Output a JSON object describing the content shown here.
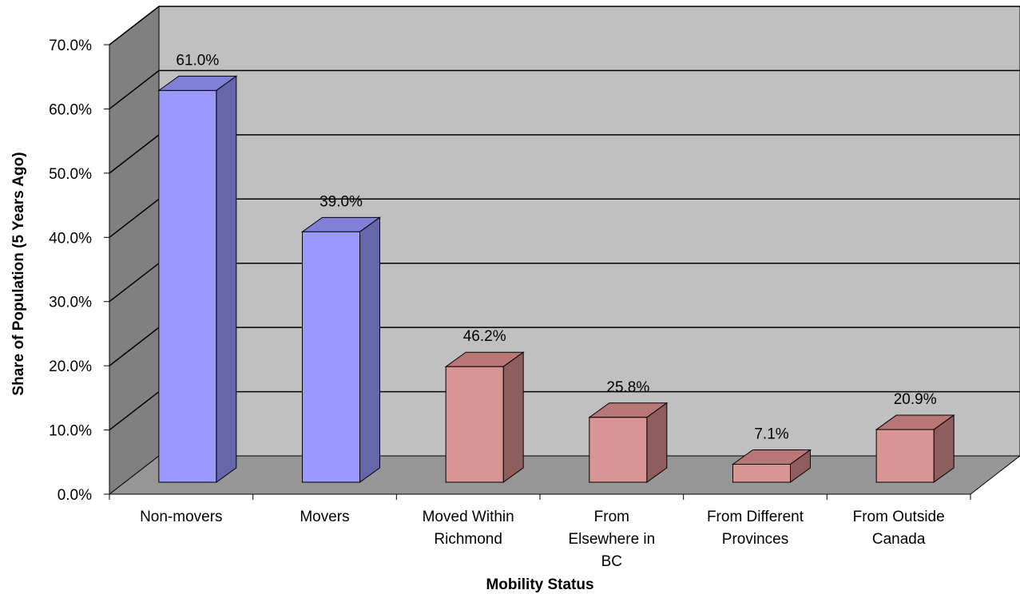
{
  "chart_data": {
    "type": "bar",
    "title": "",
    "xlabel": "Mobility Status",
    "ylabel": "Share of Population (5 Years Ago)",
    "ylim": [
      0,
      70
    ],
    "ytick_labels": [
      "0.0%",
      "10.0%",
      "20.0%",
      "30.0%",
      "40.0%",
      "50.0%",
      "60.0%",
      "70.0%"
    ],
    "grid": true,
    "legend": "none",
    "style": "3d-column",
    "categories": [
      [
        "Non-movers"
      ],
      [
        "Movers"
      ],
      [
        "Moved Within",
        "Richmond"
      ],
      [
        "From",
        "Elsewhere in",
        "BC"
      ],
      [
        "From Different",
        "Provinces"
      ],
      [
        "From Outside",
        "Canada"
      ]
    ],
    "values": [
      61.0,
      39.0,
      18.0,
      10.1,
      2.8,
      8.2
    ],
    "data_labels": [
      "61.0%",
      "39.0%",
      "46.2%",
      "25.8%",
      "7.1%",
      "20.9%"
    ],
    "bar_groups": [
      "blue",
      "blue",
      "red",
      "red",
      "red",
      "red"
    ],
    "colors": {
      "blue_front": "#9999FF",
      "blue_top": "#8080D8",
      "blue_side": "#6666AA",
      "red_front": "#D99594",
      "red_top": "#B87776",
      "red_side": "#8E5D5D",
      "back_wall": "#C0C0C0",
      "side_wall": "#808080",
      "floor": "#969696"
    }
  }
}
